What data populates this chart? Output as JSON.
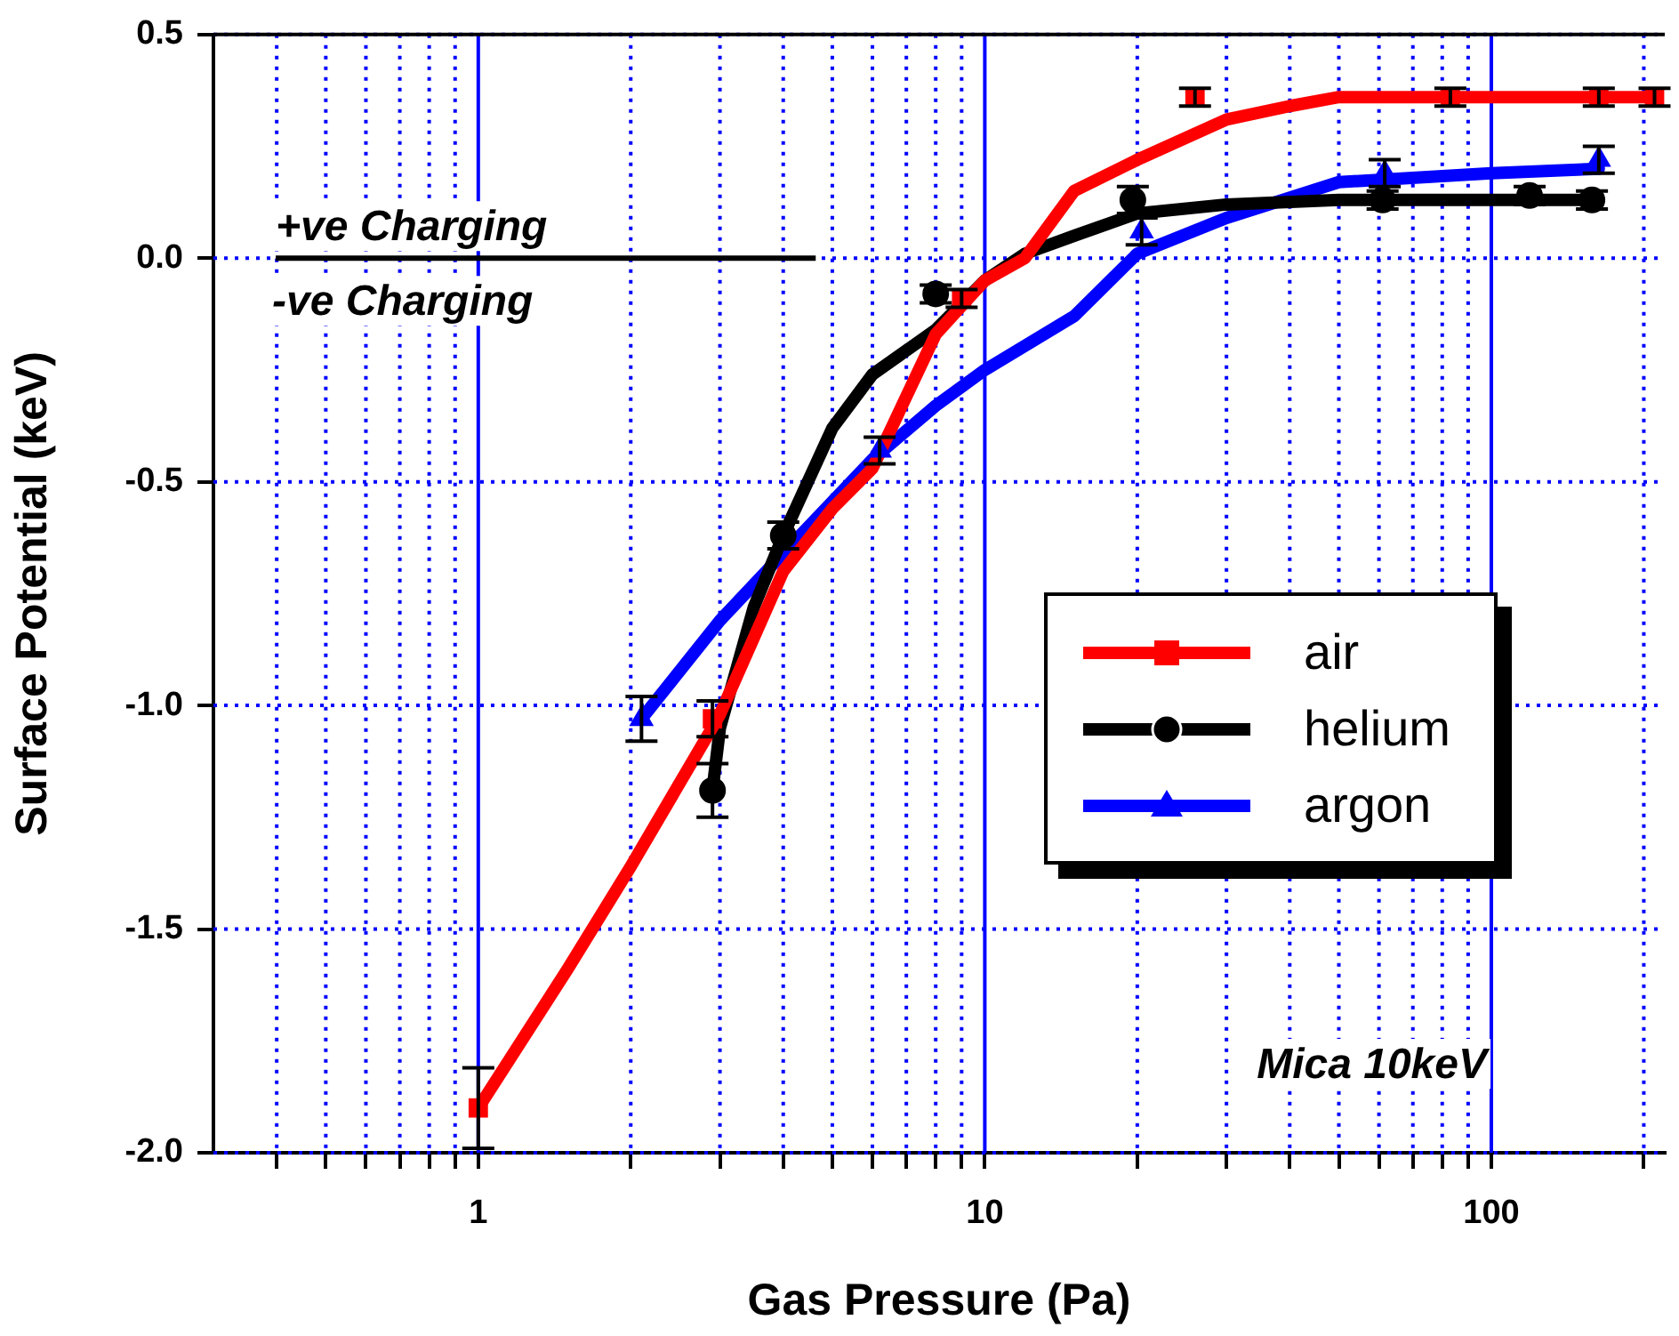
{
  "chart_data": {
    "type": "scatter",
    "xlabel": "Gas Pressure (Pa)",
    "ylabel": "Surface Potential (keV)",
    "log": "x",
    "xlim": [
      0.3,
      220
    ],
    "ylim": [
      -2.0,
      0.5
    ],
    "xticks": [
      {
        "value": 0.4,
        "label": null
      },
      {
        "value": 0.5,
        "label": null
      },
      {
        "value": 0.6,
        "label": null
      },
      {
        "value": 0.7,
        "label": null
      },
      {
        "value": 0.8,
        "label": null
      },
      {
        "value": 0.9,
        "label": null
      },
      1,
      {
        "value": 2,
        "label": null
      },
      {
        "value": 3,
        "label": null
      },
      {
        "value": 4,
        "label": null
      },
      {
        "value": 5,
        "label": null
      },
      {
        "value": 6,
        "label": null
      },
      {
        "value": 7,
        "label": null
      },
      {
        "value": 8,
        "label": null
      },
      {
        "value": 9,
        "label": null
      },
      10,
      {
        "value": 20,
        "label": null
      },
      {
        "value": 30,
        "label": null
      },
      {
        "value": 40,
        "label": null
      },
      {
        "value": 50,
        "label": null
      },
      {
        "value": 60,
        "label": null
      },
      {
        "value": 70,
        "label": null
      },
      {
        "value": 80,
        "label": null
      },
      {
        "value": 90,
        "label": null
      },
      100,
      {
        "value": 200,
        "label": null
      }
    ],
    "yticks": [
      {
        "value": -2.0,
        "label": "-2.0"
      },
      {
        "value": -1.5,
        "label": "-1.5"
      },
      {
        "value": -1.0,
        "label": "-1.0"
      },
      {
        "value": -0.5,
        "label": "-0.5"
      },
      {
        "value": 0.0,
        "label": "0.0"
      },
      {
        "value": 0.5,
        "label": "0.5"
      }
    ],
    "grid": true,
    "legend": "right",
    "series": [
      {
        "name": "air",
        "type": "scatter",
        "marker": "square",
        "color": "#ff0000",
        "x": [
          1,
          2.9,
          9,
          26,
          83,
          163,
          210
        ],
        "values": [
          -1.9,
          -1.03,
          -0.09,
          0.36,
          0.36,
          0.36,
          0.36
        ],
        "errors": [
          0.09,
          0.04,
          0.02,
          0.02,
          0.02,
          0.02,
          0.02
        ]
      },
      {
        "name": "helium",
        "type": "scatter",
        "marker": "circle",
        "color": "#000000",
        "x": [
          2.9,
          4,
          8,
          19.6,
          61,
          119,
          158
        ],
        "values": [
          -1.19,
          -0.62,
          -0.08,
          0.13,
          0.13,
          0.14,
          0.13
        ],
        "errors": [
          0.06,
          0.03,
          0.02,
          0.03,
          0.02,
          0.02,
          0.02
        ]
      },
      {
        "name": "argon",
        "type": "scatter",
        "marker": "triangle",
        "color": "#0000ff",
        "x": [
          2.1,
          6.2,
          20.4,
          61.6,
          163
        ],
        "values": [
          -1.03,
          -0.43,
          0.06,
          0.19,
          0.22
        ],
        "errors": [
          0.05,
          0.03,
          0.03,
          0.03,
          0.03
        ]
      },
      {
        "type": "line",
        "marker": "none",
        "color": "#ff0000",
        "x": [
          1,
          1.5,
          2,
          3,
          4,
          5,
          6,
          8,
          10,
          12,
          15,
          20,
          30,
          40,
          50,
          210
        ],
        "values": [
          -1.9,
          -1.59,
          -1.36,
          -1.02,
          -0.7,
          -0.56,
          -0.47,
          -0.17,
          -0.05,
          0.0,
          0.15,
          0.22,
          0.31,
          0.34,
          0.36,
          0.36
        ]
      },
      {
        "type": "line",
        "marker": "none",
        "color": "#000000",
        "x": [
          2.9,
          3,
          3.5,
          4,
          5,
          6,
          8,
          10,
          12,
          15,
          20,
          30,
          50,
          158
        ],
        "values": [
          -1.19,
          -1.05,
          -0.78,
          -0.62,
          -0.38,
          -0.26,
          -0.16,
          -0.05,
          0.01,
          0.05,
          0.1,
          0.12,
          0.13,
          0.13
        ]
      },
      {
        "type": "line",
        "marker": "none",
        "color": "#0000ff",
        "x": [
          2.1,
          3,
          4,
          6,
          8,
          10,
          15,
          20,
          30,
          50,
          100,
          163
        ],
        "values": [
          -1.03,
          -0.81,
          -0.66,
          -0.45,
          -0.33,
          -0.25,
          -0.13,
          0.01,
          0.09,
          0.17,
          0.19,
          0.2
        ]
      }
    ],
    "ref_lines": [
      {
        "axis": "y",
        "value": 0,
        "color": "#000000"
      }
    ],
    "annotations": [
      "+ve Charging",
      "-ve Charging",
      "Mica 10keV"
    ]
  }
}
